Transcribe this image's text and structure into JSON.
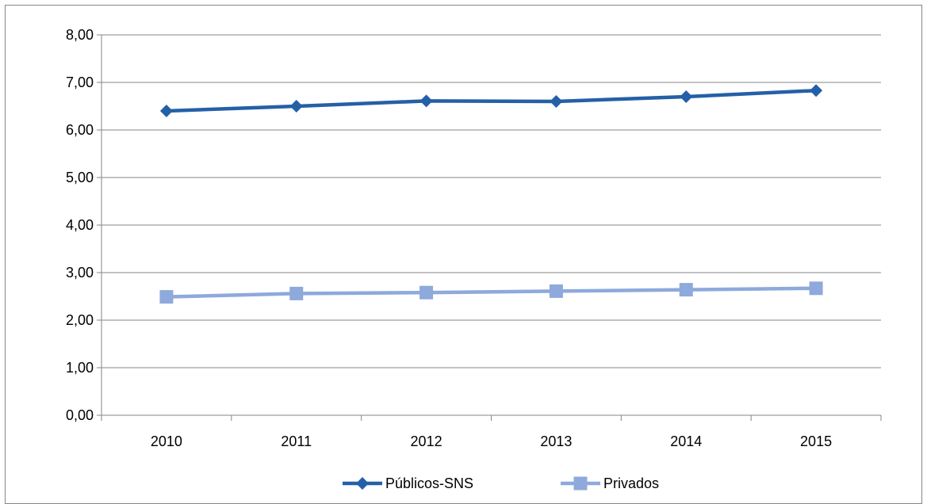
{
  "chart_data": {
    "type": "line",
    "title": "",
    "xlabel": "",
    "ylabel": "",
    "categories": [
      "2010",
      "2011",
      "2012",
      "2013",
      "2014",
      "2015"
    ],
    "ylim": [
      0,
      8
    ],
    "y_ticks": [
      "0,00",
      "1,00",
      "2,00",
      "3,00",
      "4,00",
      "5,00",
      "6,00",
      "7,00",
      "8,00"
    ],
    "grid": "horizontal",
    "legend_position": "bottom",
    "series": [
      {
        "name": "Públicos-SNS",
        "values": [
          6.4,
          6.5,
          6.61,
          6.6,
          6.7,
          6.83
        ],
        "color": "#2460A7",
        "marker": "diamond"
      },
      {
        "name": "Privados",
        "values": [
          2.49,
          2.56,
          2.58,
          2.61,
          2.64,
          2.67
        ],
        "color": "#8EA9DB",
        "marker": "square"
      }
    ]
  }
}
